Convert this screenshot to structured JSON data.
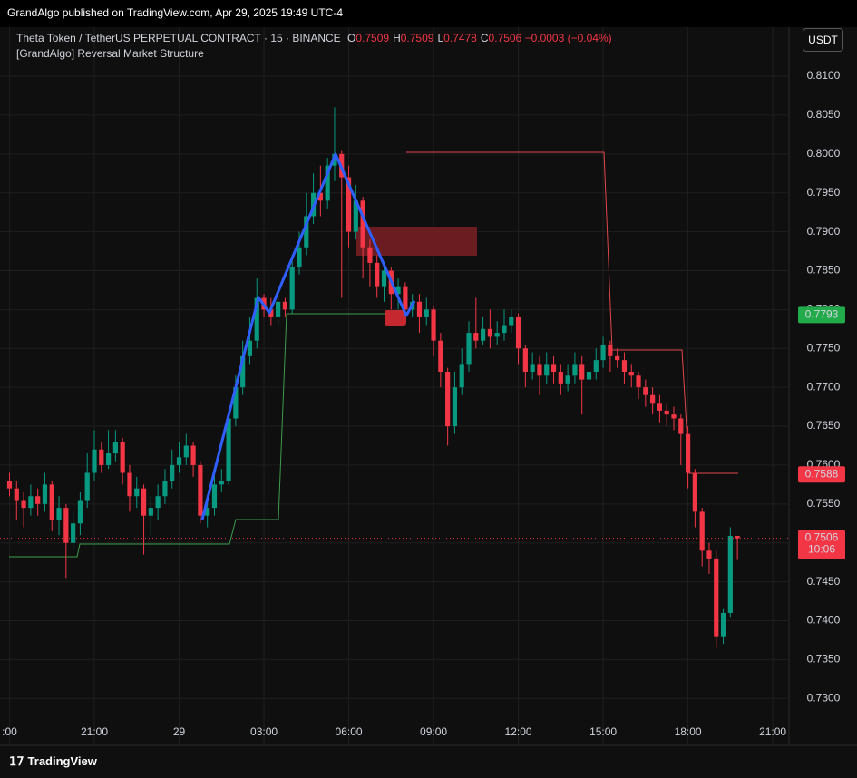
{
  "header": "GrandAlgo published on TradingView.com, Apr 29, 2025 19:49 UTC-4",
  "footer": "TradingView",
  "chart_data": {
    "type": "candlestick",
    "symbol": "Theta Token / TetherUS PERPETUAL CONTRACT · 15 · BINANCE",
    "ohlc_legend": [
      {
        "label": "O",
        "value": 0.7509
      },
      {
        "label": "H",
        "value": 0.7509
      },
      {
        "label": "L",
        "value": 0.7478
      },
      {
        "label": "C",
        "value": 0.7506
      }
    ],
    "change": "−0.0003 (−0.04%)",
    "indicator": "[GrandAlgo] Reversal Market Structure",
    "currency": "USDT",
    "up_color": "#089981",
    "down_color": "#f23645",
    "categories": [
      ":00",
      null,
      null,
      null,
      null,
      null,
      null,
      null,
      null,
      null,
      null,
      null,
      "21:00",
      null,
      null,
      null,
      null,
      null,
      null,
      null,
      null,
      null,
      null,
      null,
      "29",
      null,
      null,
      null,
      null,
      null,
      null,
      null,
      null,
      null,
      null,
      null,
      "03:00",
      null,
      null,
      null,
      null,
      null,
      null,
      null,
      null,
      null,
      null,
      null,
      "06:00",
      null,
      null,
      null,
      null,
      null,
      null,
      null,
      null,
      null,
      null,
      null,
      "09:00",
      null,
      null,
      null,
      null,
      null,
      null,
      null,
      null,
      null,
      null,
      null,
      "12:00",
      null,
      null,
      null,
      null,
      null,
      null,
      null,
      null,
      null,
      null,
      null,
      "15:00",
      null,
      null,
      null,
      null,
      null,
      null,
      null,
      null,
      null,
      null,
      null,
      "18:00",
      null,
      null,
      null,
      null,
      null,
      null,
      null,
      null,
      null,
      null,
      null,
      "21:00"
    ],
    "open": [
      0.758,
      0.757,
      0.7555,
      0.7545,
      0.756,
      0.755,
      0.7575,
      0.753,
      0.7545,
      0.75,
      0.7525,
      0.7555,
      0.759,
      0.762,
      0.76,
      0.7615,
      0.763,
      0.759,
      0.756,
      0.757,
      0.7535,
      0.7545,
      0.756,
      0.758,
      0.76,
      0.761,
      0.7625,
      0.76,
      0.7535,
      0.7545,
      0.7575,
      0.758,
      0.766,
      0.77,
      0.774,
      0.776,
      0.7815,
      0.78,
      0.779,
      0.781,
      0.78,
      0.7855,
      0.788,
      0.792,
      0.795,
      0.794,
      0.7985,
      0.8,
      0.797,
      0.79,
      0.794,
      0.788,
      0.786,
      0.783,
      0.785,
      0.782,
      0.783,
      0.78,
      0.781,
      0.779,
      0.78,
      0.776,
      0.772,
      0.765,
      0.77,
      0.773,
      0.777,
      0.776,
      0.7775,
      0.7765,
      0.777,
      0.778,
      0.779,
      0.775,
      0.772,
      0.773,
      0.7715,
      0.773,
      0.772,
      0.7705,
      0.7715,
      0.773,
      0.771,
      0.772,
      0.7735,
      0.7755,
      0.774,
      0.7735,
      0.772,
      0.7715,
      0.77,
      0.769,
      0.768,
      0.767,
      0.7665,
      0.766,
      0.764,
      0.759,
      0.754,
      0.749,
      0.748,
      0.738,
      0.741,
      0.7509,
      null,
      null,
      null,
      null,
      null
    ],
    "high": [
      0.759,
      0.758,
      0.7565,
      0.7575,
      0.757,
      0.759,
      0.758,
      0.756,
      0.755,
      0.754,
      0.7565,
      0.7615,
      0.7645,
      0.763,
      0.7645,
      0.7645,
      0.7635,
      0.76,
      0.7585,
      0.7575,
      0.756,
      0.7575,
      0.7595,
      0.762,
      0.763,
      0.764,
      0.763,
      0.7605,
      0.756,
      0.759,
      0.7595,
      0.767,
      0.7715,
      0.776,
      0.779,
      0.784,
      0.782,
      0.7815,
      0.782,
      0.7815,
      0.787,
      0.79,
      0.795,
      0.7975,
      0.7985,
      0.7995,
      0.806,
      0.8005,
      0.7985,
      0.796,
      0.7945,
      0.789,
      0.787,
      0.786,
      0.7855,
      0.784,
      0.7835,
      0.782,
      0.782,
      0.7815,
      0.7805,
      0.777,
      0.7725,
      0.772,
      0.775,
      0.7785,
      0.7815,
      0.779,
      0.78,
      0.7785,
      0.78,
      0.78,
      0.7795,
      0.7755,
      0.7745,
      0.774,
      0.7745,
      0.774,
      0.773,
      0.773,
      0.7745,
      0.774,
      0.7735,
      0.775,
      0.7765,
      0.776,
      0.775,
      0.7745,
      0.773,
      0.772,
      0.771,
      0.77,
      0.769,
      0.768,
      0.7675,
      0.7665,
      0.765,
      0.7595,
      0.7545,
      0.75,
      0.749,
      0.7415,
      0.752,
      0.7509,
      null,
      null,
      null,
      null,
      null
    ],
    "low": [
      0.756,
      0.753,
      0.752,
      0.7535,
      0.7535,
      0.754,
      0.7515,
      0.751,
      0.7455,
      0.749,
      0.751,
      0.7545,
      0.758,
      0.759,
      0.7595,
      0.7605,
      0.7575,
      0.754,
      0.7545,
      0.7485,
      0.751,
      0.753,
      0.755,
      0.757,
      0.759,
      0.76,
      0.7585,
      0.7525,
      0.752,
      0.7535,
      0.7565,
      0.7575,
      0.765,
      0.769,
      0.773,
      0.775,
      0.779,
      0.778,
      0.778,
      0.779,
      0.7795,
      0.7845,
      0.787,
      0.791,
      0.792,
      0.793,
      0.7965,
      0.7815,
      0.788,
      0.789,
      0.784,
      0.783,
      0.7815,
      0.781,
      0.78,
      0.78,
      0.779,
      0.779,
      0.777,
      0.778,
      0.774,
      0.77,
      0.7625,
      0.764,
      0.769,
      0.772,
      0.775,
      0.7755,
      0.775,
      0.7755,
      0.776,
      0.777,
      0.773,
      0.77,
      0.771,
      0.769,
      0.7705,
      0.7705,
      0.769,
      0.7695,
      0.7705,
      0.7665,
      0.77,
      0.771,
      0.7725,
      0.772,
      0.7725,
      0.7705,
      0.77,
      0.7685,
      0.7675,
      0.7665,
      0.7655,
      0.765,
      0.7645,
      0.76,
      0.757,
      0.752,
      0.747,
      0.746,
      0.7365,
      0.737,
      0.7405,
      0.7478,
      null,
      null,
      null,
      null,
      null
    ],
    "close": [
      0.757,
      0.7555,
      0.7545,
      0.756,
      0.755,
      0.7575,
      0.753,
      0.7545,
      0.75,
      0.7525,
      0.7555,
      0.759,
      0.762,
      0.76,
      0.7615,
      0.763,
      0.759,
      0.756,
      0.757,
      0.7535,
      0.7545,
      0.756,
      0.758,
      0.76,
      0.761,
      0.7625,
      0.76,
      0.7535,
      0.7545,
      0.7575,
      0.758,
      0.766,
      0.77,
      0.774,
      0.776,
      0.7815,
      0.78,
      0.779,
      0.781,
      0.78,
      0.7855,
      0.788,
      0.792,
      0.795,
      0.794,
      0.7985,
      0.8,
      0.797,
      0.79,
      0.794,
      0.788,
      0.786,
      0.783,
      0.785,
      0.782,
      0.783,
      0.78,
      0.781,
      0.779,
      0.78,
      0.776,
      0.772,
      0.765,
      0.77,
      0.773,
      0.777,
      0.776,
      0.7775,
      0.7765,
      0.777,
      0.778,
      0.779,
      0.775,
      0.772,
      0.773,
      0.7715,
      0.773,
      0.772,
      0.7705,
      0.7715,
      0.773,
      0.771,
      0.772,
      0.7735,
      0.7755,
      0.774,
      0.7735,
      0.772,
      0.7715,
      0.77,
      0.769,
      0.768,
      0.767,
      0.7665,
      0.766,
      0.764,
      0.759,
      0.754,
      0.749,
      0.748,
      0.738,
      0.741,
      0.7509,
      0.7506,
      null,
      null,
      null,
      null,
      null
    ],
    "ylim": [
      0.7277,
      0.8163
    ],
    "yticks": [
      {
        "value": 0.81,
        "label": "0.8100"
      },
      {
        "value": 0.805,
        "label": "0.8050"
      },
      {
        "value": 0.8,
        "label": "0.8000"
      },
      {
        "value": 0.795,
        "label": "0.7950"
      },
      {
        "value": 0.79,
        "label": "0.7900"
      },
      {
        "value": 0.785,
        "label": "0.7850"
      },
      {
        "value": 0.78,
        "label": "0.7800"
      },
      {
        "value": 0.775,
        "label": "0.7750"
      },
      {
        "value": 0.77,
        "label": "0.7700"
      },
      {
        "value": 0.765,
        "label": "0.7650"
      },
      {
        "value": 0.76,
        "label": "0.7600"
      },
      {
        "value": 0.755,
        "label": "0.7550"
      },
      {
        "value": 0.75,
        "label": "0.7500"
      },
      {
        "value": 0.745,
        "label": "0.7450"
      },
      {
        "value": 0.74,
        "label": "0.7400"
      },
      {
        "value": 0.735,
        "label": "0.7350"
      },
      {
        "value": 0.73,
        "label": "0.7300"
      }
    ],
    "grid": true,
    "price_markers": [
      {
        "value": 0.7793,
        "color": "#22ab4a"
      },
      {
        "value": 0.7588,
        "color": "#f23645"
      },
      {
        "value": 0.7506,
        "color": "#f23645",
        "countdown": "10:06"
      }
    ]
  }
}
